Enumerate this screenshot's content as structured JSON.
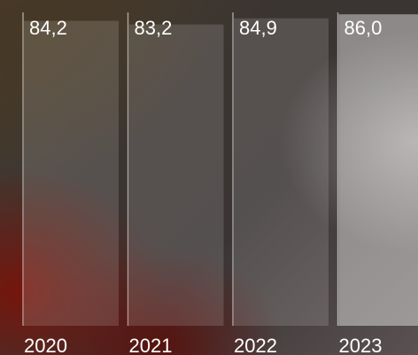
{
  "chart_data": {
    "type": "bar",
    "categories": [
      "2020",
      "2021",
      "2022",
      "2023"
    ],
    "values": [
      84.2,
      83.2,
      84.9,
      86.0
    ],
    "value_labels": [
      "84,2",
      "83,2",
      "84,9",
      "86,0"
    ],
    "title": "",
    "xlabel": "",
    "ylabel": "",
    "ylim": [
      0,
      88
    ],
    "grid": false,
    "highlight_category": "2023",
    "colors": {
      "bar": "#ffffff",
      "label": "#ffffff"
    }
  }
}
